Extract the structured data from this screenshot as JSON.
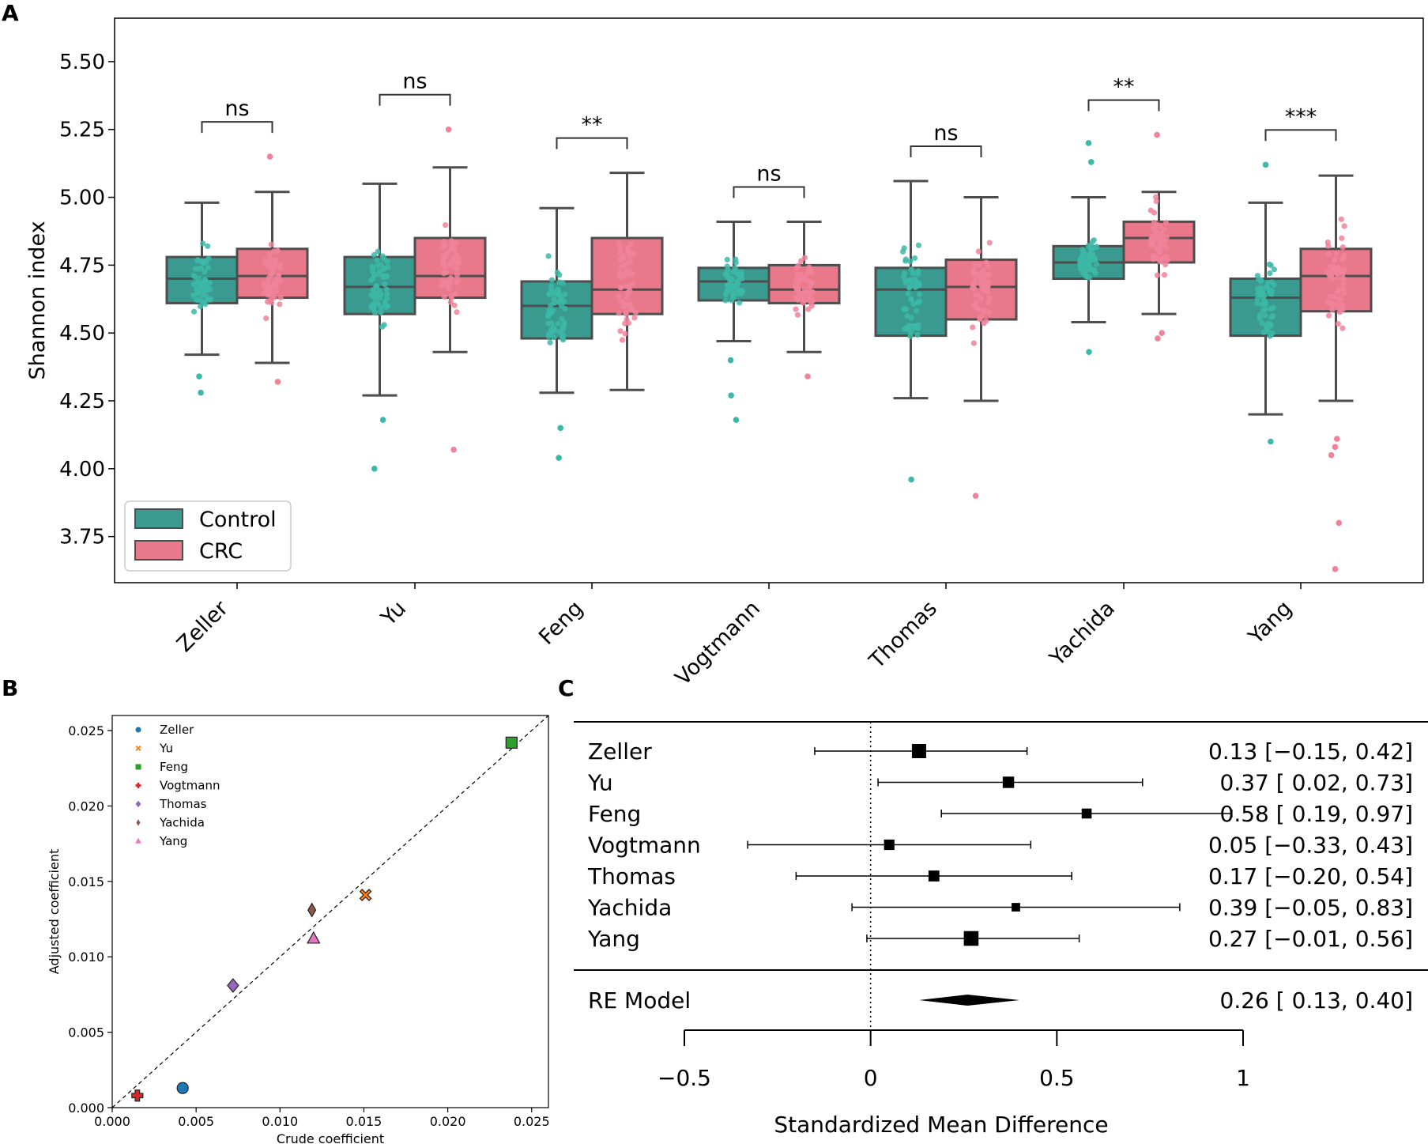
{
  "panel_labels": {
    "a": "A",
    "b": "B",
    "c": "C"
  },
  "colors": {
    "control": "#3a9a90",
    "crc": "#e8788a",
    "control_dot": "#3cb8a8",
    "crc_dot": "#f0829a",
    "box_edge": "#4d4d4d"
  },
  "chart_data": [
    {
      "panel": "A",
      "type": "box",
      "ylabel": "Shannon index",
      "ylim": [
        3.58,
        5.66
      ],
      "yticks": [
        "3.75",
        "4.00",
        "4.25",
        "4.50",
        "4.75",
        "5.00",
        "5.25",
        "5.50"
      ],
      "categories": [
        "Zeller",
        "Yu",
        "Feng",
        "Vogtmann",
        "Thomas",
        "Yachida",
        "Yang"
      ],
      "legend": [
        "Control",
        "CRC"
      ],
      "legend_position": "lower-left",
      "significance": [
        "ns",
        "ns",
        "**",
        "ns",
        "ns",
        "**",
        "***"
      ],
      "series": [
        {
          "name": "Control",
          "boxes": [
            {
              "wlo": 4.42,
              "q1": 4.61,
              "med": 4.7,
              "q3": 4.78,
              "whi": 4.98,
              "outliers": [
                4.34,
                4.28
              ]
            },
            {
              "wlo": 4.27,
              "q1": 4.57,
              "med": 4.67,
              "q3": 4.78,
              "whi": 5.05,
              "outliers": [
                4.18,
                4.0
              ]
            },
            {
              "wlo": 4.28,
              "q1": 4.48,
              "med": 4.6,
              "q3": 4.69,
              "whi": 4.96,
              "outliers": [
                4.15,
                4.04
              ]
            },
            {
              "wlo": 4.47,
              "q1": 4.62,
              "med": 4.69,
              "q3": 4.74,
              "whi": 4.91,
              "outliers": [
                4.4,
                4.27,
                4.18
              ]
            },
            {
              "wlo": 4.26,
              "q1": 4.49,
              "med": 4.66,
              "q3": 4.74,
              "whi": 5.06,
              "outliers": [
                3.96
              ]
            },
            {
              "wlo": 4.54,
              "q1": 4.7,
              "med": 4.76,
              "q3": 4.82,
              "whi": 5.0,
              "outliers": [
                5.2,
                5.13,
                4.43
              ]
            },
            {
              "wlo": 4.2,
              "q1": 4.49,
              "med": 4.63,
              "q3": 4.7,
              "whi": 4.98,
              "outliers": [
                5.12,
                4.1
              ]
            }
          ]
        },
        {
          "name": "CRC",
          "boxes": [
            {
              "wlo": 4.39,
              "q1": 4.63,
              "med": 4.71,
              "q3": 4.81,
              "whi": 5.02,
              "outliers": [
                5.15,
                4.32
              ]
            },
            {
              "wlo": 4.43,
              "q1": 4.63,
              "med": 4.71,
              "q3": 4.85,
              "whi": 5.11,
              "outliers": [
                5.25,
                4.07
              ]
            },
            {
              "wlo": 4.29,
              "q1": 4.57,
              "med": 4.66,
              "q3": 4.85,
              "whi": 5.09,
              "outliers": []
            },
            {
              "wlo": 4.43,
              "q1": 4.61,
              "med": 4.66,
              "q3": 4.75,
              "whi": 4.91,
              "outliers": [
                4.34
              ]
            },
            {
              "wlo": 4.25,
              "q1": 4.55,
              "med": 4.67,
              "q3": 4.77,
              "whi": 5.0,
              "outliers": [
                3.9
              ]
            },
            {
              "wlo": 4.57,
              "q1": 4.76,
              "med": 4.85,
              "q3": 4.91,
              "whi": 5.02,
              "outliers": [
                5.23,
                4.5,
                4.48
              ]
            },
            {
              "wlo": 4.25,
              "q1": 4.58,
              "med": 4.71,
              "q3": 4.81,
              "whi": 5.08,
              "outliers": [
                4.11,
                4.08,
                4.05,
                3.8,
                3.63
              ]
            }
          ]
        }
      ]
    },
    {
      "panel": "B",
      "type": "scatter",
      "xlabel": "Crude coefficient",
      "ylabel": "Adjusted coefficient",
      "xlim": [
        0,
        0.026
      ],
      "ylim": [
        0,
        0.026
      ],
      "xticks": [
        "0.000",
        "0.005",
        "0.010",
        "0.015",
        "0.020",
        "0.025"
      ],
      "yticks": [
        "0.000",
        "0.005",
        "0.010",
        "0.015",
        "0.020",
        "0.025"
      ],
      "legend_position": "upper-left",
      "diagonal": true,
      "points": [
        {
          "name": "Zeller",
          "x": 0.0042,
          "y": 0.0013,
          "color": "#1f77b4",
          "marker": "circle"
        },
        {
          "name": "Yu",
          "x": 0.0151,
          "y": 0.0141,
          "color": "#ff7f0e",
          "marker": "x"
        },
        {
          "name": "Feng",
          "x": 0.0238,
          "y": 0.0242,
          "color": "#2ca02c",
          "marker": "square"
        },
        {
          "name": "Vogtmann",
          "x": 0.0015,
          "y": 0.0008,
          "color": "#d62728",
          "marker": "plus"
        },
        {
          "name": "Thomas",
          "x": 0.0072,
          "y": 0.0081,
          "color": "#9467bd",
          "marker": "diamond"
        },
        {
          "name": "Yachida",
          "x": 0.0119,
          "y": 0.0131,
          "color": "#8c564b",
          "marker": "thin-diamond"
        },
        {
          "name": "Yang",
          "x": 0.012,
          "y": 0.0112,
          "color": "#e377c2",
          "marker": "triangle"
        }
      ]
    },
    {
      "panel": "C",
      "type": "forest",
      "xlabel": "Standardized Mean Difference",
      "xlim": [
        -0.5,
        1
      ],
      "xticks": [
        {
          "v": -0.5,
          "label": "−0.5"
        },
        {
          "v": 0,
          "label": "0"
        },
        {
          "v": 0.5,
          "label": "0.5"
        },
        {
          "v": 1,
          "label": "1"
        }
      ],
      "studies": [
        {
          "name": "Zeller",
          "est": 0.13,
          "lo": -0.15,
          "hi": 0.42,
          "weight": 1.0,
          "label": "0.13 [−0.15, 0.42]"
        },
        {
          "name": "Yu",
          "est": 0.37,
          "lo": 0.02,
          "hi": 0.73,
          "weight": 0.7,
          "label": "0.37 [ 0.02, 0.73]"
        },
        {
          "name": "Feng",
          "est": 0.58,
          "lo": 0.19,
          "hi": 0.97,
          "weight": 0.55,
          "label": "0.58 [ 0.19, 0.97]"
        },
        {
          "name": "Vogtmann",
          "est": 0.05,
          "lo": -0.33,
          "hi": 0.43,
          "weight": 0.6,
          "label": "0.05 [−0.33, 0.43]"
        },
        {
          "name": "Thomas",
          "est": 0.17,
          "lo": -0.2,
          "hi": 0.54,
          "weight": 0.65,
          "label": "0.17 [−0.20, 0.54]"
        },
        {
          "name": "Yachida",
          "est": 0.39,
          "lo": -0.05,
          "hi": 0.83,
          "weight": 0.4,
          "label": "0.39 [−0.05, 0.83]"
        },
        {
          "name": "Yang",
          "est": 0.27,
          "lo": -0.01,
          "hi": 0.56,
          "weight": 1.05,
          "label": "0.27 [−0.01, 0.56]"
        }
      ],
      "summary": {
        "name": "RE Model",
        "est": 0.26,
        "lo": 0.13,
        "hi": 0.4,
        "label": "0.26 [ 0.13, 0.40]"
      }
    }
  ]
}
